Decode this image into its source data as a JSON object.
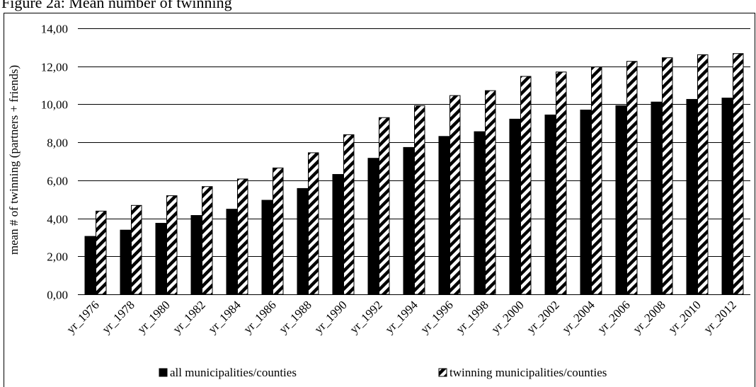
{
  "chart_data": {
    "type": "bar",
    "title": "Figure 2a: Mean number of twinning",
    "xlabel": "",
    "ylabel": "mean # of twinning (partners + friends)",
    "ylim": [
      0,
      14
    ],
    "yticks": [
      "0,00",
      "2,00",
      "4,00",
      "6,00",
      "8,00",
      "10,00",
      "12,00",
      "14,00"
    ],
    "grid": true,
    "legend_position": "bottom",
    "categories": [
      "yr_1976",
      "yr_1978",
      "yr_1980",
      "yr_1982",
      "yr_1984",
      "yr_1986",
      "yr_1988",
      "yr_1990",
      "yr_1992",
      "yr_1994",
      "yr_1996",
      "yr_1998",
      "yr_2000",
      "yr_2002",
      "yr_2004",
      "yr_2006",
      "yr_2008",
      "yr_2010",
      "yr_2012"
    ],
    "series": [
      {
        "name": "all municipalities/counties",
        "fill": "solid",
        "color": "#000000",
        "values": [
          3.05,
          3.38,
          3.74,
          4.15,
          4.48,
          4.95,
          5.57,
          6.31,
          7.16,
          7.73,
          8.31,
          8.56,
          9.22,
          9.44,
          9.7,
          9.93,
          10.12,
          10.26,
          10.33
        ]
      },
      {
        "name": "twinning municipalities/counties",
        "fill": "diagonal-stripes",
        "color": "#000000",
        "values": [
          4.38,
          4.68,
          5.19,
          5.67,
          6.07,
          6.65,
          7.45,
          8.4,
          9.3,
          9.93,
          10.46,
          10.72,
          11.47,
          11.7,
          11.97,
          12.26,
          12.45,
          12.61,
          12.67
        ]
      }
    ]
  }
}
